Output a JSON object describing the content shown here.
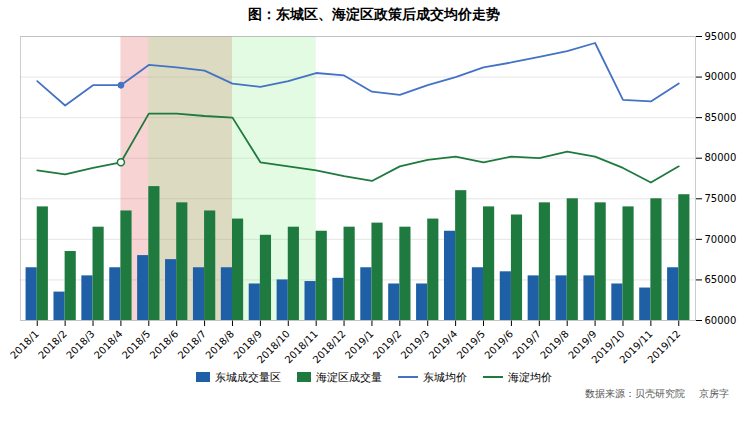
{
  "chart_data": {
    "type": "bar",
    "title": "图：东城区、海淀区政策后成交均价走势",
    "categories": [
      "2018/1",
      "2018/2",
      "2018/3",
      "2018/4",
      "2018/5",
      "2018/6",
      "2018/7",
      "2018/8",
      "2018/9",
      "2018/10",
      "2018/11",
      "2018/12",
      "2019/1",
      "2019/2",
      "2019/3",
      "2019/4",
      "2019/5",
      "2019/6",
      "2019/7",
      "2019/8",
      "2019/9",
      "2019/10",
      "2019/11",
      "2019/12"
    ],
    "series": [
      {
        "name": "东城成交量区",
        "type": "bar",
        "color": "#1f5fa6",
        "values": [
          66500,
          63500,
          65500,
          66500,
          68000,
          67500,
          66500,
          66500,
          64500,
          65000,
          64800,
          65200,
          66500,
          64500,
          64500,
          71000,
          66500,
          66000,
          65500,
          65500,
          65500,
          64500,
          64000,
          66500
        ]
      },
      {
        "name": "海淀区成交量",
        "type": "bar",
        "color": "#1e7a3e",
        "values": [
          74000,
          68500,
          71500,
          73500,
          76500,
          74500,
          73500,
          72500,
          70500,
          71500,
          71000,
          71500,
          72000,
          71500,
          72500,
          76000,
          74000,
          73000,
          74500,
          75000,
          74500,
          74000,
          75000,
          75500
        ]
      },
      {
        "name": "东城均价",
        "type": "line",
        "color": "#4472c4",
        "values": [
          89500,
          86500,
          89000,
          89000,
          91500,
          91200,
          90800,
          89200,
          88800,
          89500,
          90500,
          90200,
          88200,
          87800,
          89000,
          90000,
          91200,
          91800,
          92500,
          93200,
          94200,
          87200,
          87000,
          89200
        ]
      },
      {
        "name": "海淀均价",
        "type": "line",
        "color": "#1e7a3e",
        "values": [
          78500,
          78000,
          78800,
          79500,
          85500,
          85500,
          85200,
          85000,
          79500,
          79000,
          78500,
          77800,
          77200,
          79000,
          79800,
          80200,
          79500,
          80200,
          80000,
          80800,
          80200,
          78800,
          77000,
          79000
        ]
      }
    ],
    "ylim": [
      60000,
      95000
    ],
    "yticks": [
      60000,
      65000,
      70000,
      75000,
      80000,
      85000,
      90000,
      95000
    ],
    "grid": true,
    "legend": "bottom",
    "spans": [
      {
        "from": "2018/4",
        "to": "2018/8",
        "color": "#e05050"
      },
      {
        "from": "2018/5",
        "to": "2018/11",
        "color": "#90ee90"
      }
    ],
    "highlight": "2018/4",
    "annotations": [
      "数据来源：贝壳研究院",
      "京房字"
    ]
  }
}
